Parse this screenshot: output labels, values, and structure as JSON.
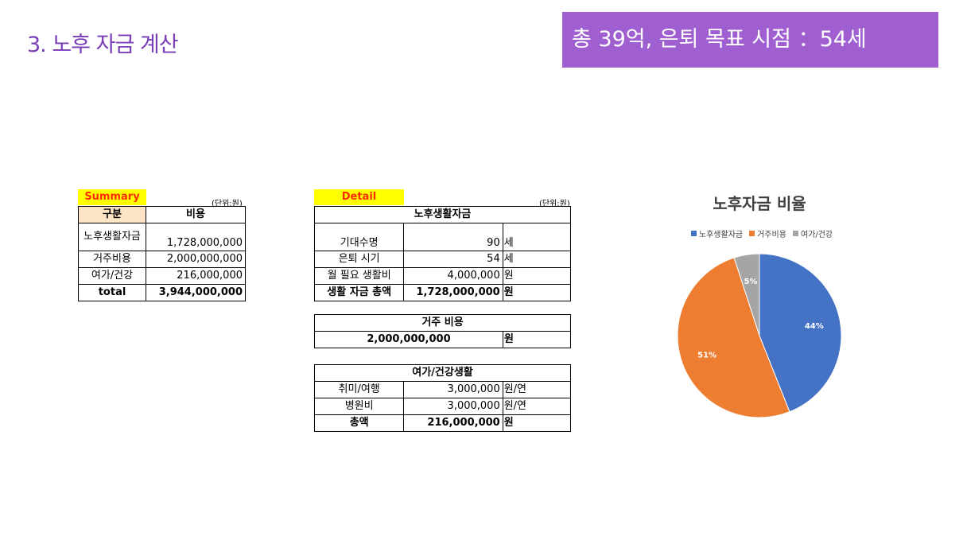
{
  "slide_title": "3. 노후 자금 계산",
  "banner": "총 39억, 은퇴 목표 시점 ：54세",
  "summary": {
    "tag": "Summary",
    "unit": "(단위:원)",
    "headers": [
      "구분",
      "비용"
    ],
    "rows": [
      {
        "label": "노후생활자금",
        "value": "1,728,000,000"
      },
      {
        "label": "거주비용",
        "value": "2,000,000,000"
      },
      {
        "label": "여가/건강",
        "value": "216,000,000"
      }
    ],
    "total_label": "total",
    "total_value": "3,944,000,000"
  },
  "detail": {
    "tag": "Detail",
    "unit": "(단위:원)",
    "living": {
      "title": "노후생활자금",
      "rows": [
        {
          "label": "기대수명",
          "value": "90",
          "unit": "세"
        },
        {
          "label": "은퇴 시기",
          "value": "54",
          "unit": "세"
        },
        {
          "label": "월 필요 생활비",
          "value": "4,000,000",
          "unit": "원"
        },
        {
          "label": "생활 자금 총액",
          "value": "1,728,000,000",
          "unit": "원"
        }
      ]
    },
    "housing": {
      "title": "거주 비용",
      "value": "2,000,000,000",
      "unit": "원"
    },
    "leisure": {
      "title": "여가/건강생활",
      "rows": [
        {
          "label": "취미/여행",
          "value": "3,000,000",
          "unit": "원/연"
        },
        {
          "label": "병원비",
          "value": "3,000,000",
          "unit": "원/연"
        },
        {
          "label": "총액",
          "value": "216,000,000",
          "unit": "원"
        }
      ]
    }
  },
  "chart_data": {
    "type": "pie",
    "title": "노후자금 비율",
    "legend_position": "top",
    "slices": [
      {
        "name": "노후생활자금",
        "value": 44,
        "label": "44%",
        "color": "#4472c4"
      },
      {
        "name": "거주비용",
        "value": 51,
        "label": "51%",
        "color": "#ed7d31"
      },
      {
        "name": "여가/건강",
        "value": 5,
        "label": "5%",
        "color": "#a5a5a5"
      }
    ]
  }
}
